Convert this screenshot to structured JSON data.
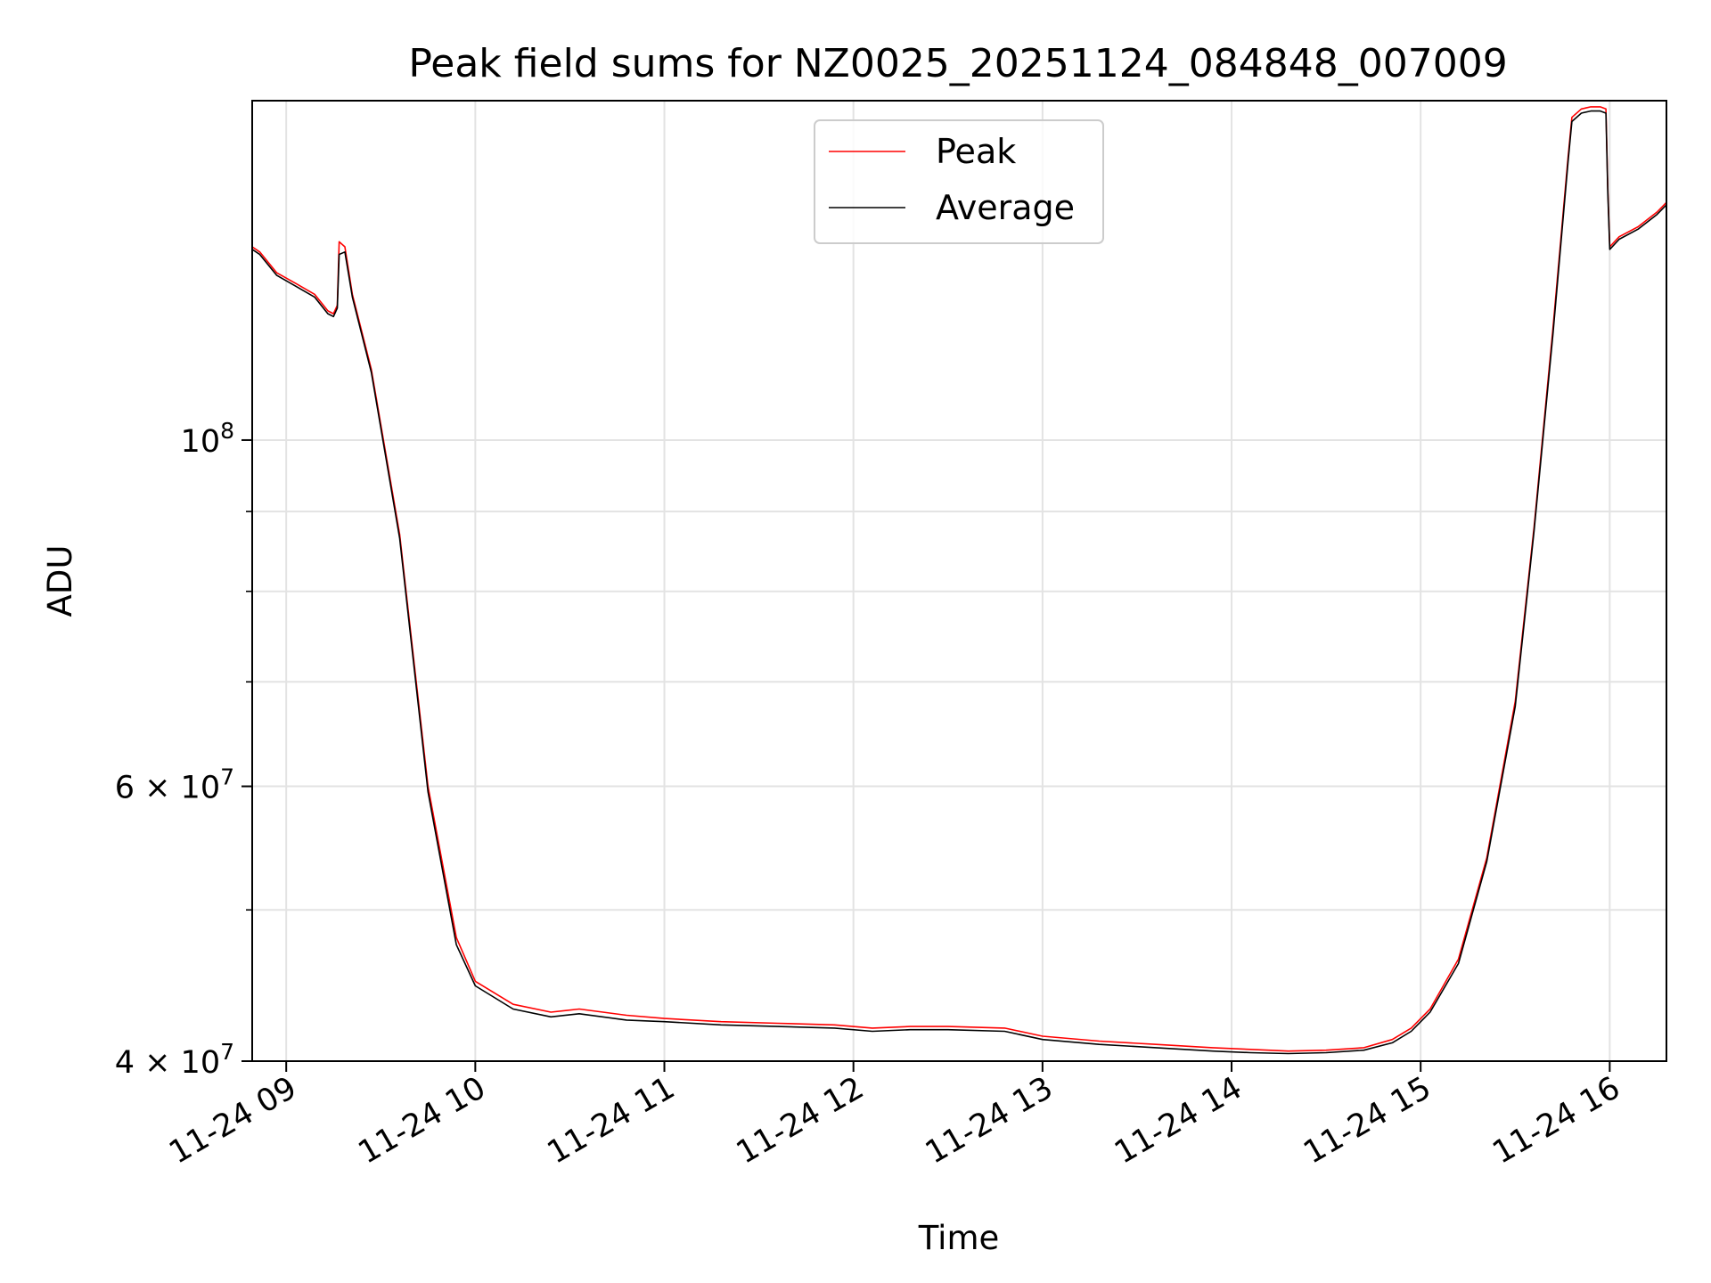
{
  "chart_data": {
    "type": "line",
    "title": "Peak field sums for NZ0025_20251124_084848_007009",
    "xlabel": "Time",
    "ylabel": "ADU",
    "yscale": "log",
    "xlim": [
      8.82,
      16.3
    ],
    "ylim": [
      40000000,
      165000000
    ],
    "grid": true,
    "legend_position": "upper center",
    "x_ticks": [
      {
        "value": 9,
        "label": "11-24 09"
      },
      {
        "value": 10,
        "label": "11-24 10"
      },
      {
        "value": 11,
        "label": "11-24 11"
      },
      {
        "value": 12,
        "label": "11-24 12"
      },
      {
        "value": 13,
        "label": "11-24 13"
      },
      {
        "value": 14,
        "label": "11-24 14"
      },
      {
        "value": 15,
        "label": "11-24 15"
      },
      {
        "value": 16,
        "label": "11-24 16"
      }
    ],
    "y_ticks": [
      {
        "value": 40000000,
        "mantissa": "4",
        "exponent": "7"
      },
      {
        "value": 60000000,
        "mantissa": "6",
        "exponent": "7"
      },
      {
        "value": 100000000,
        "mantissa": "",
        "exponent": "8"
      }
    ],
    "y_minor_ticks": [
      50000000,
      70000000,
      80000000,
      90000000
    ],
    "series": [
      {
        "name": "Peak",
        "color": "#ff0000",
        "x": [
          8.82,
          8.86,
          8.95,
          9.05,
          9.15,
          9.22,
          9.25,
          9.27,
          9.28,
          9.31,
          9.35,
          9.45,
          9.6,
          9.75,
          9.9,
          10.0,
          10.2,
          10.4,
          10.55,
          10.8,
          11.0,
          11.3,
          11.6,
          11.9,
          12.1,
          12.3,
          12.5,
          12.8,
          13.0,
          13.3,
          13.6,
          13.9,
          14.1,
          14.3,
          14.5,
          14.7,
          14.85,
          14.95,
          15.05,
          15.2,
          15.35,
          15.5,
          15.6,
          15.7,
          15.78,
          15.8,
          15.85,
          15.9,
          15.95,
          15.98,
          15.99,
          16.0,
          16.05,
          16.15,
          16.25,
          16.3
        ],
        "y": [
          133000000,
          132000000,
          128000000,
          126000000,
          124000000,
          121000000,
          120500000,
          122000000,
          134000000,
          133000000,
          124000000,
          111000000,
          87000000,
          60000000,
          48000000,
          45000000,
          43500000,
          43000000,
          43200000,
          42800000,
          42600000,
          42400000,
          42300000,
          42200000,
          42000000,
          42100000,
          42100000,
          42000000,
          41500000,
          41200000,
          41000000,
          40800000,
          40700000,
          40600000,
          40650000,
          40800000,
          41300000,
          42000000,
          43200000,
          46500000,
          54000000,
          68000000,
          88000000,
          118000000,
          152000000,
          161000000,
          163000000,
          163500000,
          163500000,
          163000000,
          145000000,
          133000000,
          135000000,
          137000000,
          140000000,
          142000000
        ]
      },
      {
        "name": "Average",
        "color": "#000000",
        "x": [
          8.82,
          8.86,
          8.95,
          9.05,
          9.15,
          9.22,
          9.25,
          9.27,
          9.28,
          9.31,
          9.35,
          9.45,
          9.6,
          9.75,
          9.9,
          10.0,
          10.2,
          10.4,
          10.55,
          10.8,
          11.0,
          11.3,
          11.6,
          11.9,
          12.1,
          12.3,
          12.5,
          12.8,
          13.0,
          13.3,
          13.6,
          13.9,
          14.1,
          14.3,
          14.5,
          14.7,
          14.85,
          14.95,
          15.05,
          15.2,
          15.35,
          15.5,
          15.6,
          15.7,
          15.78,
          15.8,
          15.85,
          15.9,
          15.95,
          15.98,
          15.99,
          16.0,
          16.05,
          16.15,
          16.25,
          16.3
        ],
        "y": [
          132500000,
          131500000,
          127500000,
          125500000,
          123500000,
          120500000,
          120000000,
          121500000,
          131500000,
          132000000,
          123500000,
          110500000,
          86500000,
          59500000,
          47500000,
          44700000,
          43200000,
          42700000,
          42900000,
          42500000,
          42400000,
          42200000,
          42100000,
          42000000,
          41800000,
          41900000,
          41900000,
          41800000,
          41300000,
          41000000,
          40800000,
          40600000,
          40500000,
          40450000,
          40500000,
          40650000,
          41100000,
          41800000,
          43000000,
          46200000,
          53700000,
          67500000,
          87500000,
          117000000,
          151000000,
          160000000,
          162000000,
          162500000,
          162500000,
          162000000,
          144000000,
          132500000,
          134500000,
          136500000,
          139500000,
          141500000
        ]
      }
    ]
  }
}
